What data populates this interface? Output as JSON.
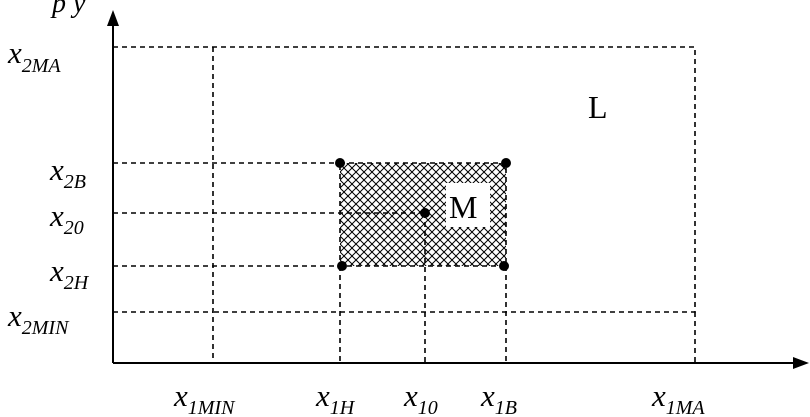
{
  "header_fragment": "p y",
  "y_labels": {
    "x2ma": {
      "main": "x",
      "sub": "2MA"
    },
    "x2b": {
      "main": "x",
      "sub": "2B"
    },
    "x20": {
      "main": "x",
      "sub": "20"
    },
    "x2h": {
      "main": "x",
      "sub": "2H"
    },
    "x2min": {
      "main": "x",
      "sub": "2MIN"
    }
  },
  "x_labels": {
    "x1min": {
      "main": "x",
      "sub": "1MIN"
    },
    "x1h": {
      "main": "x",
      "sub": "1H"
    },
    "x10": {
      "main": "x",
      "sub": "10"
    },
    "x1b": {
      "main": "x",
      "sub": "1B"
    },
    "x1ma": {
      "main": "x",
      "sub": "1MA"
    }
  },
  "regions": {
    "L": "L",
    "M": "M"
  }
}
